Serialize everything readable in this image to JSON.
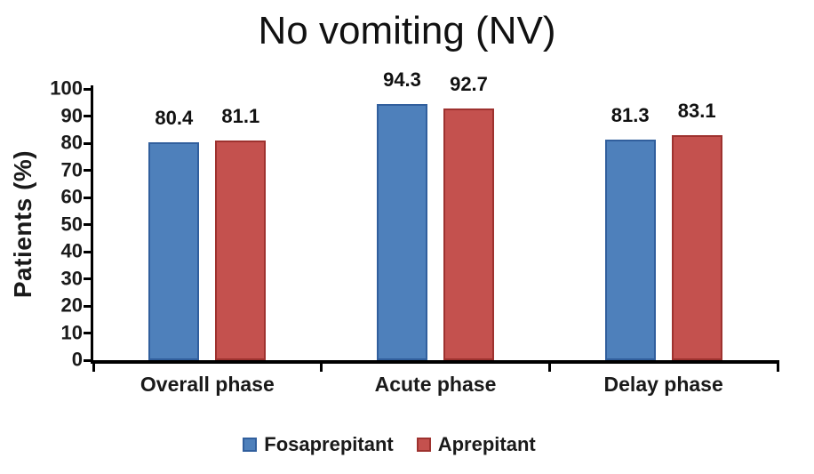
{
  "chart_data": {
    "type": "bar",
    "title": "No vomiting (NV)",
    "ylabel": "Patients (%)",
    "xlabel": "",
    "categories": [
      "Overall phase",
      "Acute phase",
      "Delay phase"
    ],
    "series": [
      {
        "name": "Fosaprepitant",
        "color": "#4e80bb",
        "border_color": "#315f9d",
        "values": [
          80.4,
          94.3,
          81.3
        ]
      },
      {
        "name": "Aprepitant",
        "color": "#c4514e",
        "border_color": "#9e322f",
        "values": [
          81.1,
          92.7,
          83.1
        ]
      }
    ],
    "ylim": [
      0,
      100
    ],
    "yticks": [
      0,
      10,
      20,
      30,
      40,
      50,
      60,
      70,
      80,
      90,
      100
    ],
    "grid": false,
    "legend_position": "bottom",
    "value_label_decimals": 1,
    "axis_color": "#000000",
    "text_color": "#1a1a1a"
  }
}
